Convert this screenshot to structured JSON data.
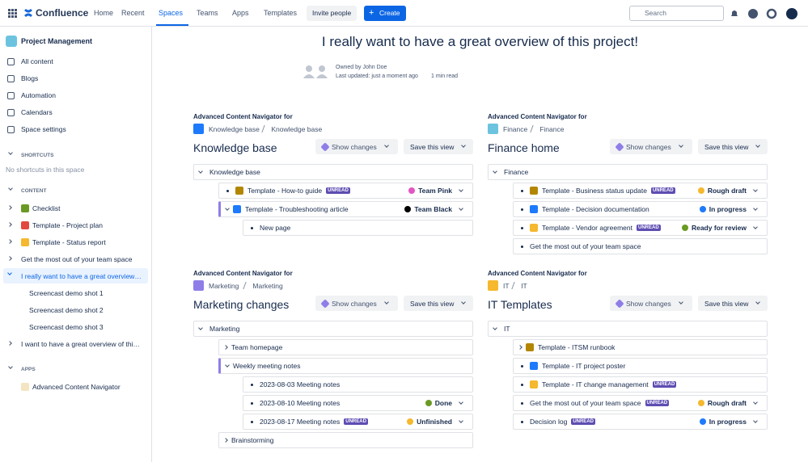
{
  "topnav": {
    "product": "Confluence",
    "items": [
      "Home",
      "Recent",
      "Spaces",
      "Teams",
      "Apps",
      "Templates"
    ],
    "invite": "Invite people",
    "create": "Create",
    "search": "Search"
  },
  "sidebar": {
    "space": "Project Management",
    "links": [
      "All content",
      "Blogs",
      "Automation",
      "Calendars",
      "Space settings"
    ],
    "shortcuts": {
      "heading": "SHORTCUTS",
      "empty": "No shortcuts in this space"
    },
    "content": {
      "heading": "CONTENT",
      "tree": [
        {
          "label": "Checklist"
        },
        {
          "label": "Template - Project plan"
        },
        {
          "label": "Template - Status report"
        },
        {
          "label": "Get the most out of your team space"
        },
        {
          "label": "I really want to have a great overview…",
          "selected": true,
          "children": [
            {
              "label": "Screencast demo shot 1"
            },
            {
              "label": "Screencast demo shot 2"
            },
            {
              "label": "Screencast demo shot 3"
            }
          ]
        },
        {
          "label": "I want to have a great overview of thi…"
        }
      ]
    },
    "apps": {
      "heading": "APPS",
      "items": [
        "Advanced Content Navigator"
      ]
    }
  },
  "page": {
    "title": "I really want to have a great overview of this project!",
    "owner": "Owned by John Doe",
    "updated": "Last updated: just a moment ago",
    "read": "1 min read"
  },
  "panels": [
    {
      "for": "Advanced Content Navigator for",
      "breadcrumb": [
        "Knowledge base",
        "Knowledge base"
      ],
      "title": "Knowledge base",
      "show_changes": "Show changes",
      "save_view": "Save this view",
      "root": "Knowledge base",
      "rows": [
        {
          "label": "Template - How-to guide",
          "badge": "UNREAD",
          "status": {
            "label": "Team Pink",
            "color": "#e255c2"
          }
        },
        {
          "label": "Template - Troubleshooting article",
          "status": {
            "label": "Team Black",
            "color": "#000000"
          },
          "children": [
            {
              "label": "New page"
            }
          ]
        }
      ]
    },
    {
      "for": "Advanced Content Navigator for",
      "breadcrumb": [
        "Finance",
        "Finance"
      ],
      "title": "Finance home",
      "show_changes": "Show changes",
      "save_view": "Save this view",
      "root": "Finance",
      "rows": [
        {
          "label": "Template - Business status update",
          "badge": "UNREAD",
          "status": {
            "label": "Rough draft",
            "color": "#f5b82e"
          }
        },
        {
          "label": "Template - Decision documentation",
          "status": {
            "label": "In progress",
            "color": "#1d7afc"
          }
        },
        {
          "label": "Template - Vendor agreement",
          "badge": "UNREAD",
          "status": {
            "label": "Ready for review",
            "color": "#6a9a23"
          }
        },
        {
          "label": "Get the most out of your team space"
        }
      ]
    },
    {
      "for": "Advanced Content Navigator for",
      "breadcrumb": [
        "Marketing",
        "Marketing"
      ],
      "title": "Marketing changes",
      "show_changes": "Show changes",
      "save_view": "Save this view",
      "root": "Marketing",
      "rows": [
        {
          "label": "Team homepage",
          "expandable": true
        },
        {
          "label": "Weekly meeting notes",
          "children": [
            {
              "label": "2023-08-03 Meeting notes"
            },
            {
              "label": "2023-08-10 Meeting notes",
              "status": {
                "label": "Done",
                "color": "#6a9a23"
              }
            },
            {
              "label": "2023-08-17 Meeting notes",
              "badge": "UNREAD",
              "status": {
                "label": "Unfinished",
                "color": "#f5b82e"
              }
            }
          ]
        },
        {
          "label": "Brainstorming",
          "expandable": true
        }
      ]
    },
    {
      "for": "Advanced Content Navigator for",
      "breadcrumb": [
        "IT",
        "IT"
      ],
      "title": "IT Templates",
      "show_changes": "Show changes",
      "save_view": "Save this view",
      "root": "IT",
      "rows": [
        {
          "label": "Template - ITSM runbook",
          "expandable": true
        },
        {
          "label": "Template - IT project poster"
        },
        {
          "label": "Template - IT change management",
          "badge": "UNREAD"
        },
        {
          "label": "Get the most out of your team space",
          "badge": "UNREAD",
          "status": {
            "label": "Rough draft",
            "color": "#f5b82e"
          }
        },
        {
          "label": "Decision log",
          "badge": "UNREAD",
          "status": {
            "label": "In progress",
            "color": "#1d7afc"
          }
        }
      ]
    }
  ]
}
